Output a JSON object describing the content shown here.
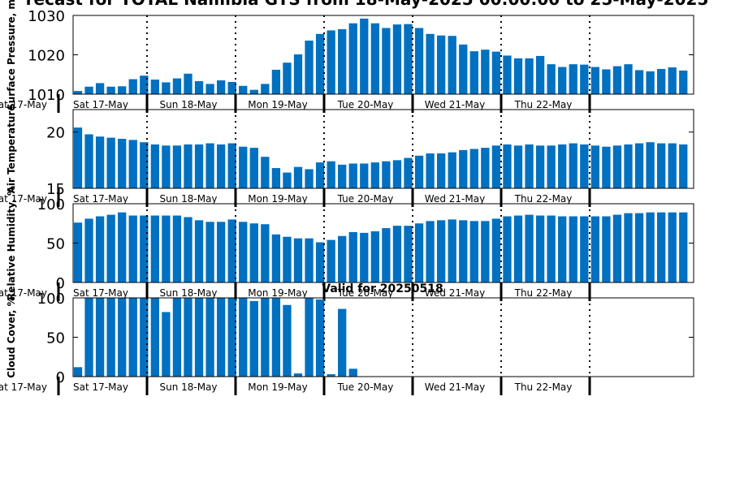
{
  "figure": {
    "title": "recast for TOTAL Namibia GTS from 18-May-2025 00:00:00 to 25-May-2025",
    "colors": {
      "bar": "#0070C0",
      "axis": "#000000",
      "background": "#FFFFFF"
    }
  },
  "chart_data": [
    {
      "type": "bar",
      "ylabel": "Surface Pressure, m",
      "subtitle": "",
      "ylim": [
        1010,
        1030
      ],
      "yticks": [
        1010,
        1020,
        1030
      ],
      "day_labels": [
        "Sat 17-May",
        "Sun 18-May",
        "Mon 19-May",
        "Tue 20-May",
        "Wed 21-May",
        "Thu 22-May"
      ],
      "cut_day_label": "at 17-May",
      "values": [
        1010.8,
        1011.9,
        1012.8,
        1011.9,
        1012.0,
        1013.8,
        1014.7,
        1013.7,
        1013.0,
        1014.0,
        1015.2,
        1013.3,
        1012.6,
        1013.5,
        1013.1,
        1012.1,
        1011.1,
        1012.6,
        1016.2,
        1018.0,
        1020.1,
        1023.6,
        1025.3,
        1026.2,
        1026.5,
        1028.0,
        1029.2,
        1028.0,
        1026.8,
        1027.7,
        1027.8,
        1026.8,
        1025.3,
        1024.9,
        1024.8,
        1022.6,
        1020.9,
        1021.3,
        1020.8,
        1019.8,
        1019.1,
        1019.1,
        1019.7,
        1017.6,
        1016.9,
        1017.6,
        1017.5,
        1016.9,
        1016.3,
        1017.1,
        1017.6,
        1016.1,
        1015.8,
        1016.4,
        1016.8,
        1016.0
      ]
    },
    {
      "type": "bar",
      "ylabel": "Air Temperature",
      "subtitle": "",
      "ylim": [
        15,
        22
      ],
      "yticks": [
        15,
        20
      ],
      "day_labels": [
        "Sat 17-May",
        "Sun 18-May",
        "Mon 19-May",
        "Tue 20-May",
        "Wed 21-May",
        "Thu 22-May"
      ],
      "cut_day_label": "at 17-May",
      "values": [
        20.4,
        19.8,
        19.6,
        19.5,
        19.4,
        19.3,
        19.1,
        18.9,
        18.8,
        18.8,
        18.9,
        18.9,
        19.0,
        18.9,
        19.0,
        18.7,
        18.6,
        17.8,
        16.8,
        16.4,
        16.9,
        16.7,
        17.3,
        17.4,
        17.1,
        17.2,
        17.2,
        17.3,
        17.4,
        17.5,
        17.7,
        17.9,
        18.1,
        18.1,
        18.2,
        18.4,
        18.5,
        18.6,
        18.8,
        18.9,
        18.8,
        18.9,
        18.8,
        18.8,
        18.9,
        19.0,
        18.9,
        18.8,
        18.7,
        18.8,
        18.9,
        19.0,
        19.1,
        19.0,
        19.0,
        18.9,
        18.7
      ]
    },
    {
      "type": "bar",
      "ylabel": "Relative Humidity, %",
      "subtitle": "",
      "ylim": [
        0,
        100
      ],
      "yticks": [
        0,
        50,
        100
      ],
      "day_labels": [
        "Sat 17-May",
        "Sun 18-May",
        "Mon 19-May",
        "Tue 20-May",
        "Wed 21-May",
        "Thu 22-May"
      ],
      "cut_day_label": "at 17-May",
      "values": [
        76,
        81,
        84,
        86,
        89,
        85,
        85,
        85,
        85,
        85,
        83,
        79,
        77,
        77,
        80,
        77,
        75,
        74,
        61,
        58,
        56,
        56,
        51,
        54,
        59,
        64,
        63,
        65,
        69,
        72,
        72,
        75,
        78,
        79,
        80,
        79,
        78,
        78,
        81,
        84,
        85,
        86,
        85,
        85,
        84,
        84,
        84,
        84,
        84,
        86,
        88,
        88,
        89,
        89,
        89,
        89
      ]
    },
    {
      "type": "bar",
      "ylabel": "Cloud Cover, %",
      "subtitle": "Valid for 20250518",
      "ylim": [
        0,
        100
      ],
      "yticks": [
        0,
        50,
        100
      ],
      "day_labels": [
        "Sat 17-May",
        "Sun 18-May",
        "Mon 19-May",
        "Tue 20-May",
        "Wed 21-May",
        "Thu 22-May"
      ],
      "cut_day_label": "at 17-May",
      "values": [
        12,
        100,
        100,
        100,
        100,
        100,
        100,
        100,
        82,
        100,
        100,
        100,
        100,
        100,
        100,
        100,
        96,
        100,
        100,
        91,
        4,
        100,
        98,
        3,
        86,
        10,
        0,
        0,
        0,
        0,
        0,
        0,
        0,
        0,
        0,
        0,
        0,
        0,
        0,
        0,
        0,
        0,
        0,
        0,
        0,
        0,
        0,
        0,
        0,
        0,
        0,
        0,
        0,
        0,
        0,
        0
      ]
    }
  ]
}
